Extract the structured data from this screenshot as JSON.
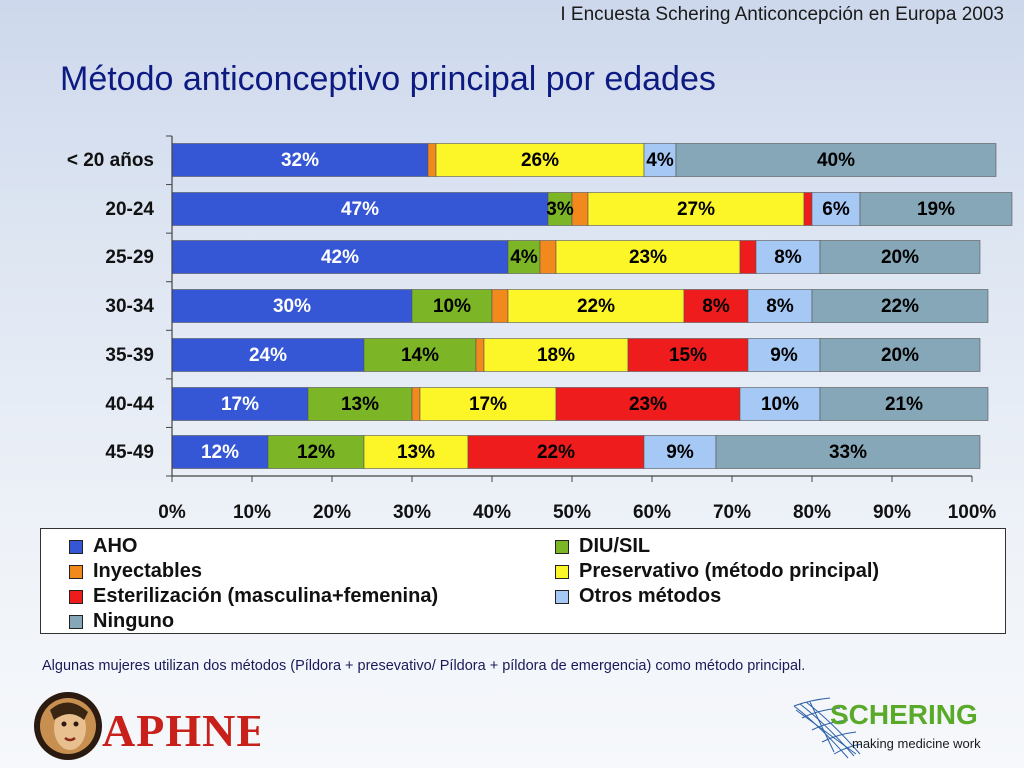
{
  "header": {
    "survey_title": "I Encuesta Schering Anticoncepción en Europa 2003",
    "page_title": "Método anticonceptivo principal por edades"
  },
  "chart_data": {
    "type": "bar",
    "orientation": "horizontal",
    "stacked": true,
    "categories": [
      "< 20 años",
      "20-24",
      "25-29",
      "30-34",
      "35-39",
      "40-44",
      "45-49"
    ],
    "series": [
      {
        "name": "AHO",
        "color": "#3557d6",
        "label_color": "#ffffff",
        "values": [
          32,
          47,
          42,
          30,
          24,
          17,
          12
        ],
        "labels": [
          "32%",
          "47%",
          "42%",
          "30%",
          "24%",
          "17%",
          "12%"
        ]
      },
      {
        "name": "DIU/SIL",
        "color": "#7cb526",
        "label_color": "#000000",
        "values": [
          0,
          3,
          4,
          10,
          14,
          13,
          12
        ],
        "labels": [
          "",
          "3%",
          "4%",
          "10%",
          "14%",
          "13%",
          "12%"
        ]
      },
      {
        "name": "Inyectables",
        "color": "#f2891d",
        "label_color": "#000000",
        "values": [
          1,
          2,
          2,
          2,
          1,
          1,
          0
        ],
        "labels": [
          "",
          "",
          "",
          "",
          "",
          "",
          ""
        ]
      },
      {
        "name": "Preservativo (método principal)",
        "color": "#fcf528",
        "label_color": "#000000",
        "values": [
          26,
          27,
          23,
          22,
          18,
          17,
          13
        ],
        "labels": [
          "26%",
          "27%",
          "23%",
          "22%",
          "18%",
          "17%",
          "13%"
        ]
      },
      {
        "name": "Esterilización (masculina+femenina)",
        "color": "#ee1c1c",
        "label_color": "#000000",
        "values": [
          0,
          1,
          2,
          8,
          15,
          23,
          22
        ],
        "labels": [
          "",
          "",
          "",
          "8%",
          "15%",
          "23%",
          "22%"
        ]
      },
      {
        "name": "Otros métodos",
        "color": "#a6c8f5",
        "label_color": "#000000",
        "values": [
          4,
          6,
          8,
          8,
          9,
          10,
          9
        ],
        "labels": [
          "4%",
          "6%",
          "8%",
          "8%",
          "9%",
          "10%",
          "9%"
        ]
      },
      {
        "name": "Ninguno",
        "color": "#86a7b8",
        "label_color": "#000000",
        "values": [
          40,
          19,
          20,
          22,
          20,
          21,
          33
        ],
        "labels": [
          "40%",
          "19%",
          "20%",
          "22%",
          "20%",
          "21%",
          "33%"
        ]
      }
    ],
    "x_ticks": [
      "0%",
      "10%",
      "20%",
      "30%",
      "40%",
      "50%",
      "60%",
      "70%",
      "80%",
      "90%",
      "100%"
    ],
    "xlim": [
      0,
      100
    ],
    "legend_position": "bottom",
    "grid": false
  },
  "footnote": "Algunas mujeres utilizan dos métodos (Píldora + presevativo/ Píldora + píldora de emergencia) como método principal.",
  "logos": {
    "left": "DAPHNE",
    "right_name": "SCHERING",
    "right_tagline": "making medicine work"
  }
}
